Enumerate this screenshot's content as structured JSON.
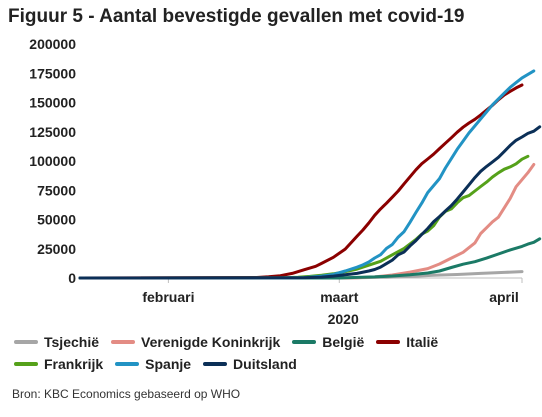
{
  "title": "Figuur 5 - Aantal bevestigde gevallen met covid-19",
  "source": "Bron: KBC Economics gebaseerd op WHO",
  "chart_data": {
    "type": "line",
    "title": "Figuur 5 - Aantal bevestigde gevallen met covid-19",
    "xlabel": "2020",
    "ylabel": "",
    "x_ticks": [
      "februari",
      "maart",
      "april"
    ],
    "x_tick_days": [
      31,
      60,
      91
    ],
    "x_range_days": [
      16,
      91
    ],
    "ylim": [
      0,
      200000
    ],
    "y_ticks": [
      0,
      25000,
      50000,
      75000,
      100000,
      125000,
      150000,
      175000,
      200000
    ],
    "y_tick_labels": [
      "0",
      "25000",
      "50000",
      "75000",
      "100000",
      "125000",
      "150000",
      "175000",
      "200000"
    ],
    "grid": false,
    "legend_position": "bottom",
    "series": [
      {
        "name": "Tsjechië",
        "color": "#a6a6a6",
        "points": [
          [
            16,
            0
          ],
          [
            55,
            0
          ],
          [
            60,
            0
          ],
          [
            64,
            300
          ],
          [
            68,
            700
          ],
          [
            72,
            1400
          ],
          [
            76,
            2300
          ],
          [
            80,
            3000
          ],
          [
            84,
            3900
          ],
          [
            88,
            4800
          ],
          [
            91,
            5500
          ]
        ]
      },
      {
        "name": "Verenigde Koninkrijk",
        "color": "#e38c84",
        "points": [
          [
            16,
            0
          ],
          [
            50,
            10
          ],
          [
            56,
            20
          ],
          [
            60,
            40
          ],
          [
            63,
            200
          ],
          [
            66,
            900
          ],
          [
            69,
            2600
          ],
          [
            72,
            5000
          ],
          [
            75,
            8000
          ],
          [
            77,
            12000
          ],
          [
            79,
            17000
          ],
          [
            81,
            22000
          ],
          [
            83,
            30000
          ],
          [
            84,
            38000
          ],
          [
            85,
            43000
          ],
          [
            86,
            48000
          ],
          [
            87,
            52000
          ],
          [
            88,
            60000
          ],
          [
            89,
            68000
          ],
          [
            90,
            78000
          ],
          [
            91,
            84000
          ],
          [
            92,
            90000
          ],
          [
            93,
            97000
          ]
        ]
      },
      {
        "name": "België",
        "color": "#1b7a66",
        "points": [
          [
            16,
            0
          ],
          [
            60,
            5
          ],
          [
            63,
            500
          ],
          [
            66,
            900
          ],
          [
            69,
            1700
          ],
          [
            72,
            2800
          ],
          [
            75,
            4300
          ],
          [
            77,
            6000
          ],
          [
            79,
            9000
          ],
          [
            81,
            11800
          ],
          [
            83,
            13900
          ],
          [
            85,
            17000
          ],
          [
            87,
            20500
          ],
          [
            89,
            24000
          ],
          [
            91,
            27000
          ],
          [
            92,
            29000
          ],
          [
            93,
            30500
          ],
          [
            94,
            33500
          ]
        ]
      },
      {
        "name": "Italië",
        "color": "#8b0000",
        "points": [
          [
            16,
            0
          ],
          [
            46,
            400
          ],
          [
            48,
            1000
          ],
          [
            50,
            2000
          ],
          [
            52,
            3900
          ],
          [
            54,
            7000
          ],
          [
            56,
            10000
          ],
          [
            57,
            12500
          ],
          [
            59,
            17700
          ],
          [
            61,
            24700
          ],
          [
            63,
            35700
          ],
          [
            64,
            41000
          ],
          [
            65,
            47000
          ],
          [
            66,
            53600
          ],
          [
            67,
            59100
          ],
          [
            68,
            63900
          ],
          [
            69,
            69100
          ],
          [
            70,
            74400
          ],
          [
            71,
            80500
          ],
          [
            72,
            86500
          ],
          [
            73,
            92500
          ],
          [
            74,
            97700
          ],
          [
            75,
            101700
          ],
          [
            76,
            105800
          ],
          [
            77,
            110600
          ],
          [
            78,
            115200
          ],
          [
            79,
            119800
          ],
          [
            80,
            124600
          ],
          [
            81,
            128900
          ],
          [
            82,
            132500
          ],
          [
            83,
            135600
          ],
          [
            84,
            139400
          ],
          [
            85,
            143600
          ],
          [
            86,
            147600
          ],
          [
            87,
            152300
          ],
          [
            88,
            156400
          ],
          [
            89,
            159500
          ],
          [
            90,
            162500
          ],
          [
            91,
            165000
          ]
        ]
      },
      {
        "name": "Frankrijk",
        "color": "#55a11a",
        "points": [
          [
            16,
            0
          ],
          [
            50,
            100
          ],
          [
            53,
            700
          ],
          [
            55,
            1400
          ],
          [
            57,
            2300
          ],
          [
            59,
            3600
          ],
          [
            61,
            5400
          ],
          [
            63,
            7600
          ],
          [
            65,
            10900
          ],
          [
            67,
            14300
          ],
          [
            69,
            19800
          ],
          [
            71,
            25200
          ],
          [
            72,
            29100
          ],
          [
            73,
            32900
          ],
          [
            74,
            37500
          ],
          [
            75,
            40200
          ],
          [
            76,
            44600
          ],
          [
            77,
            52100
          ],
          [
            78,
            56900
          ],
          [
            79,
            59100
          ],
          [
            80,
            64300
          ],
          [
            81,
            68600
          ],
          [
            82,
            70400
          ],
          [
            83,
            74400
          ],
          [
            84,
            78200
          ],
          [
            85,
            82000
          ],
          [
            86,
            86300
          ],
          [
            87,
            89900
          ],
          [
            88,
            93000
          ],
          [
            89,
            95000
          ],
          [
            90,
            97600
          ],
          [
            91,
            101500
          ],
          [
            92,
            104000
          ]
        ]
      },
      {
        "name": "Spanje",
        "color": "#2293c4",
        "points": [
          [
            16,
            0
          ],
          [
            50,
            50
          ],
          [
            54,
            300
          ],
          [
            57,
            1600
          ],
          [
            59,
            3000
          ],
          [
            61,
            6000
          ],
          [
            63,
            9200
          ],
          [
            64,
            11200
          ],
          [
            65,
            13700
          ],
          [
            66,
            17100
          ],
          [
            67,
            19900
          ],
          [
            68,
            25300
          ],
          [
            69,
            28600
          ],
          [
            70,
            35000
          ],
          [
            71,
            39700
          ],
          [
            72,
            47600
          ],
          [
            73,
            56000
          ],
          [
            74,
            64000
          ],
          [
            75,
            73000
          ],
          [
            76,
            79000
          ],
          [
            77,
            85000
          ],
          [
            78,
            94000
          ],
          [
            79,
            102000
          ],
          [
            80,
            110000
          ],
          [
            81,
            117000
          ],
          [
            82,
            124000
          ],
          [
            83,
            130000
          ],
          [
            84,
            136000
          ],
          [
            85,
            142000
          ],
          [
            86,
            148000
          ],
          [
            87,
            153000
          ],
          [
            88,
            158000
          ],
          [
            89,
            163000
          ],
          [
            90,
            167000
          ],
          [
            91,
            171000
          ],
          [
            92,
            174000
          ],
          [
            93,
            177000
          ]
        ]
      },
      {
        "name": "Duitsland",
        "color": "#0b2f57",
        "points": [
          [
            16,
            0
          ],
          [
            54,
            200
          ],
          [
            57,
            800
          ],
          [
            59,
            1600
          ],
          [
            61,
            2700
          ],
          [
            63,
            3900
          ],
          [
            65,
            6000
          ],
          [
            66,
            7300
          ],
          [
            67,
            9300
          ],
          [
            68,
            12300
          ],
          [
            69,
            15300
          ],
          [
            70,
            19800
          ],
          [
            71,
            22200
          ],
          [
            72,
            27400
          ],
          [
            73,
            32000
          ],
          [
            74,
            37300
          ],
          [
            75,
            42300
          ],
          [
            76,
            48000
          ],
          [
            77,
            52500
          ],
          [
            78,
            57300
          ],
          [
            79,
            61900
          ],
          [
            80,
            67400
          ],
          [
            81,
            73500
          ],
          [
            82,
            79700
          ],
          [
            83,
            85800
          ],
          [
            84,
            91200
          ],
          [
            85,
            95400
          ],
          [
            86,
            99200
          ],
          [
            87,
            103200
          ],
          [
            88,
            108200
          ],
          [
            89,
            113300
          ],
          [
            90,
            117700
          ],
          [
            91,
            120500
          ],
          [
            92,
            123600
          ],
          [
            93,
            125500
          ],
          [
            94,
            129200
          ]
        ]
      }
    ]
  }
}
